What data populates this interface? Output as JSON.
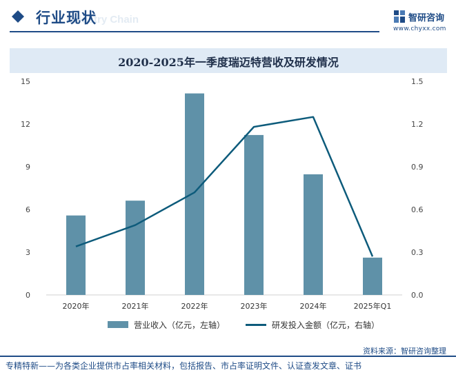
{
  "header": {
    "title": "行业现状",
    "ghost_text": "Industry Chain",
    "logo_name": "智研咨询",
    "logo_url": "www.chyxx.com"
  },
  "colors": {
    "brand": "#1e4b86",
    "bar": "#5f91a8",
    "line": "#0d5b7b",
    "title_band": "#dfeaf5"
  },
  "chart_data": {
    "type": "bar",
    "title": "2020-2025年一季度瑞迈特营收及研发情况",
    "categories": [
      "2020年",
      "2021年",
      "2022年",
      "2023年",
      "2024年",
      "2025年Q1"
    ],
    "series": [
      {
        "name": "营业收入（亿元，左轴）",
        "type": "bar",
        "axis": "left",
        "values": [
          5.58,
          6.62,
          14.15,
          11.23,
          8.47,
          2.62
        ]
      },
      {
        "name": "研发投入金额（亿元，右轴）",
        "type": "line",
        "axis": "right",
        "values": [
          0.34,
          0.49,
          0.72,
          1.18,
          1.25,
          0.27
        ]
      }
    ],
    "left_axis": {
      "ylim": [
        0,
        15
      ],
      "ticks": [
        "0",
        "3",
        "6",
        "9",
        "12",
        "15"
      ]
    },
    "right_axis": {
      "ylim": [
        0,
        1.5
      ],
      "ticks": [
        "0.0",
        "0.3",
        "0.6",
        "0.9",
        "1.2",
        "1.5"
      ]
    },
    "grid": false,
    "legend": "bottom"
  },
  "source": "资料来源：智研咨询整理",
  "footer": "专精特新——为各类企业提供市占率相关材料，包括报告、市占率证明文件、认证查发文章、证书"
}
